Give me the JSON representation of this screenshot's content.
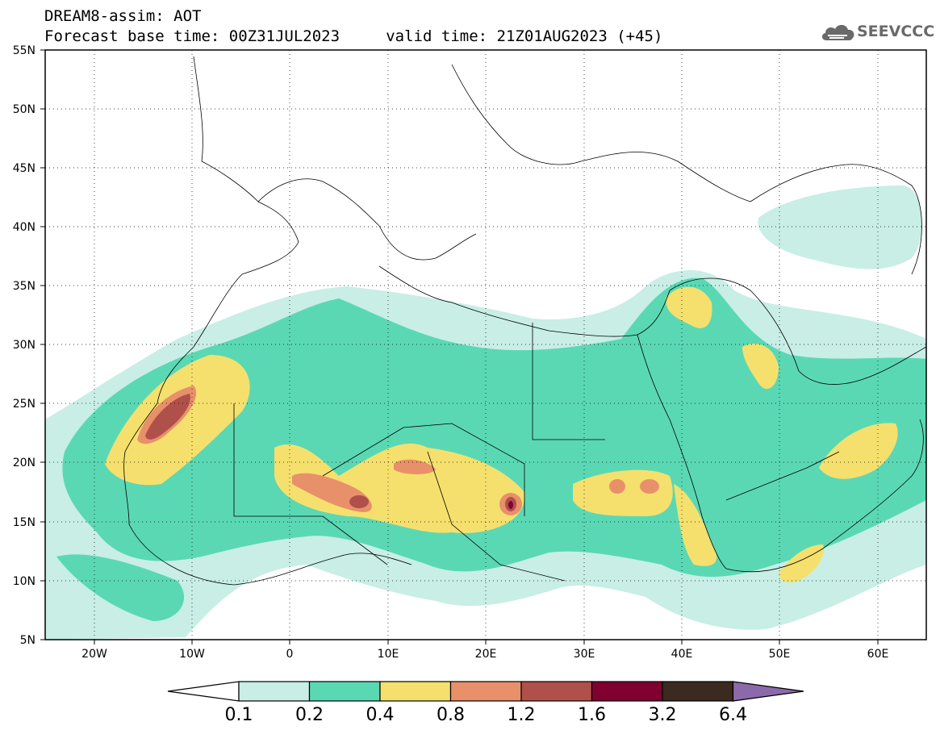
{
  "header": {
    "line1": "DREAM8-assim: AOT",
    "line2": "Forecast base time: 00Z31JUL2023     valid time: 21Z01AUG2023 (+45)"
  },
  "logo": {
    "text": "SEEVCCC",
    "icon": "cloud-icon"
  },
  "map": {
    "lat_range": [
      5,
      55
    ],
    "lon_range": [
      -25,
      65
    ],
    "lat_ticks": [
      "55N",
      "50N",
      "45N",
      "40N",
      "35N",
      "30N",
      "25N",
      "20N",
      "15N",
      "10N",
      "5N"
    ],
    "lon_ticks": [
      "20W",
      "10W",
      "0",
      "10E",
      "20E",
      "30E",
      "40E",
      "50E",
      "60E"
    ],
    "grid": true,
    "grid_style": "dotted"
  },
  "colorbar": {
    "labels": [
      "0.1",
      "0.2",
      "0.4",
      "0.8",
      "1.2",
      "1.6",
      "3.2",
      "6.4"
    ],
    "colors": [
      "#ffffff",
      "#c8eee6",
      "#5ad8b4",
      "#f5e06e",
      "#e8906a",
      "#b0504a",
      "#800030",
      "#3a2a20",
      "#8a6aaa"
    ]
  },
  "legend_colors": {
    "aot_0.1": "#c8eee6",
    "aot_0.2": "#5ad8b4",
    "aot_0.4": "#f5e06e",
    "aot_0.8": "#e8906a",
    "aot_1.2": "#b0504a",
    "aot_1.6": "#800030"
  }
}
